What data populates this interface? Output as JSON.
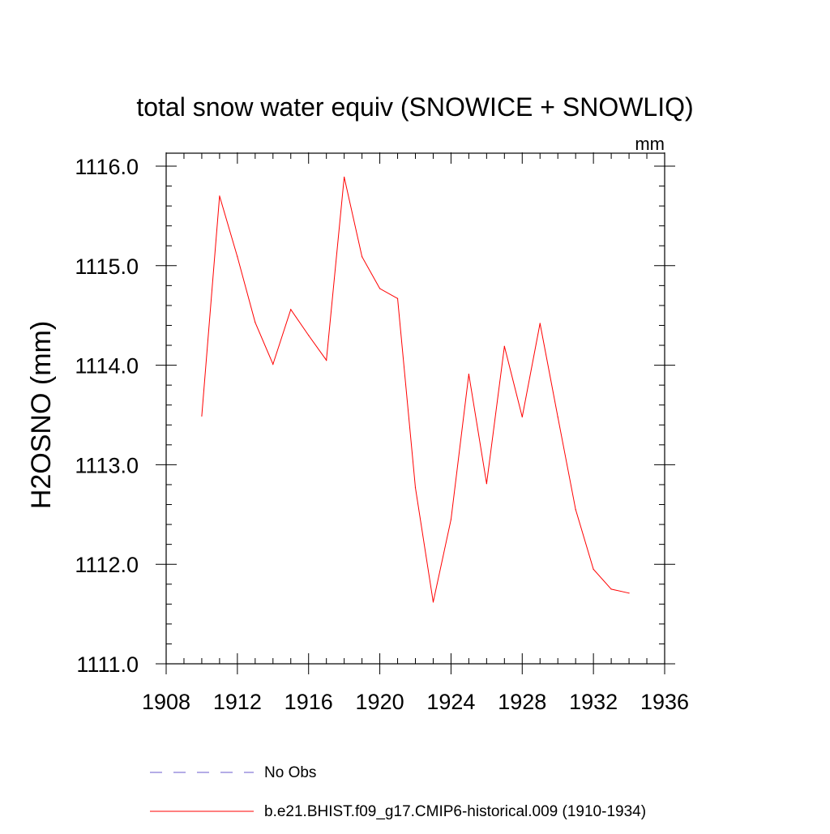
{
  "chart_data": {
    "type": "line",
    "title": "total snow water equiv (SNOWICE + SNOWLIQ)",
    "units": "mm",
    "xlabel": "",
    "ylabel": "H2OSNO  (mm)",
    "xlim": [
      1908,
      1936
    ],
    "ylim": [
      1111.0,
      1116.0
    ],
    "x_ticks": [
      1908,
      1912,
      1916,
      1920,
      1924,
      1928,
      1932,
      1936
    ],
    "x_tick_labels": [
      "1908",
      "1912",
      "1916",
      "1920",
      "1924",
      "1928",
      "1932",
      "1936"
    ],
    "x_minor_step": 1,
    "y_ticks": [
      1111.0,
      1112.0,
      1113.0,
      1114.0,
      1115.0,
      1116.0
    ],
    "y_tick_labels": [
      "1111.0",
      "1112.0",
      "1113.0",
      "1114.0",
      "1115.0",
      "1116.0"
    ],
    "y_minor_step": 0.2,
    "grid": false,
    "series": [
      {
        "name": "b.e21.BHIST.f09_g17.CMIP6-historical.009 (1910-1934)",
        "color": "#ff0000",
        "style": "solid",
        "x": [
          1910,
          1911,
          1912,
          1913,
          1914,
          1915,
          1916,
          1917,
          1918,
          1919,
          1920,
          1921,
          1922,
          1923,
          1924,
          1925,
          1926,
          1927,
          1928,
          1929,
          1930,
          1931,
          1932,
          1933,
          1934
        ],
        "values": [
          1113.49,
          1115.7,
          1115.09,
          1114.43,
          1114.01,
          1114.56,
          1114.3,
          1114.05,
          1115.89,
          1115.09,
          1114.77,
          1114.67,
          1112.77,
          1111.62,
          1112.45,
          1113.91,
          1112.81,
          1114.19,
          1113.48,
          1114.42,
          1113.48,
          1112.55,
          1111.95,
          1111.75,
          1111.71
        ]
      }
    ],
    "legend": {
      "placement": "bottom",
      "entries": [
        {
          "label": "No Obs",
          "color": "#6a5acd",
          "style": "dashed"
        },
        {
          "label": "b.e21.BHIST.f09_g17.CMIP6-historical.009 (1910-1934)",
          "color": "#ff0000",
          "style": "solid"
        }
      ]
    }
  }
}
